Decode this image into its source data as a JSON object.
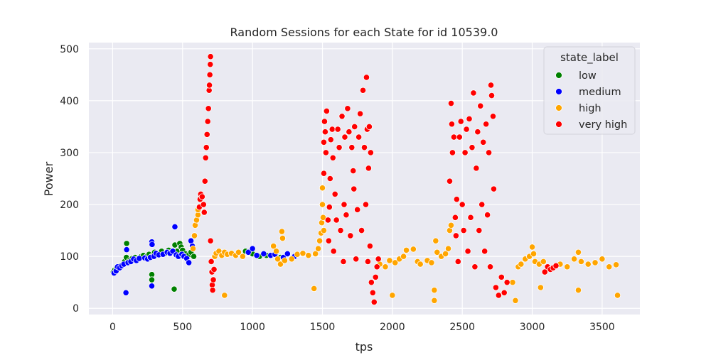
{
  "chart_data": {
    "type": "scatter",
    "title": "Random Sessions for each State for id 10539.0",
    "xlabel": "tps",
    "ylabel": "Power",
    "xlim": [
      -170,
      3770
    ],
    "ylim": [
      -12,
      512
    ],
    "xticks": [
      0,
      500,
      1000,
      1500,
      2000,
      2500,
      3000,
      3500
    ],
    "yticks": [
      0,
      100,
      200,
      300,
      400,
      500
    ],
    "grid": true,
    "legend": {
      "title": "state_label",
      "placement": "top-right"
    },
    "series": [
      {
        "name": "low",
        "color": "#008000",
        "points": [
          [
            5,
            70
          ],
          [
            15,
            74
          ],
          [
            28,
            78
          ],
          [
            40,
            76
          ],
          [
            55,
            82
          ],
          [
            70,
            84
          ],
          [
            85,
            90
          ],
          [
            98,
            98
          ],
          [
            100,
            125
          ],
          [
            120,
            92
          ],
          [
            140,
            96
          ],
          [
            160,
            98
          ],
          [
            180,
            95
          ],
          [
            205,
            100
          ],
          [
            220,
            102
          ],
          [
            240,
            99
          ],
          [
            260,
            104
          ],
          [
            280,
            100
          ],
          [
            280,
            65
          ],
          [
            280,
            55
          ],
          [
            300,
            108
          ],
          [
            320,
            105
          ],
          [
            350,
            110
          ],
          [
            380,
            106
          ],
          [
            400,
            112
          ],
          [
            420,
            108
          ],
          [
            440,
            37
          ],
          [
            445,
            122
          ],
          [
            460,
            110
          ],
          [
            480,
            125
          ],
          [
            490,
            118
          ],
          [
            500,
            112
          ],
          [
            520,
            105
          ],
          [
            540,
            102
          ],
          [
            560,
            108
          ],
          [
            580,
            100
          ],
          [
            950,
            110
          ],
          [
            1000,
            105
          ],
          [
            1050,
            100
          ],
          [
            1100,
            102
          ],
          [
            1200,
            98
          ]
        ]
      },
      {
        "name": "medium",
        "color": "#0000ff",
        "points": [
          [
            10,
            68
          ],
          [
            25,
            72
          ],
          [
            35,
            80
          ],
          [
            50,
            78
          ],
          [
            65,
            82
          ],
          [
            80,
            85
          ],
          [
            95,
            30
          ],
          [
            100,
            113
          ],
          [
            110,
            88
          ],
          [
            130,
            90
          ],
          [
            150,
            95
          ],
          [
            170,
            92
          ],
          [
            190,
            96
          ],
          [
            230,
            97
          ],
          [
            250,
            95
          ],
          [
            270,
            98
          ],
          [
            280,
            128
          ],
          [
            282,
            123
          ],
          [
            280,
            43
          ],
          [
            295,
            100
          ],
          [
            310,
            106
          ],
          [
            330,
            103
          ],
          [
            360,
            104
          ],
          [
            390,
            108
          ],
          [
            410,
            106
          ],
          [
            430,
            110
          ],
          [
            445,
            157
          ],
          [
            455,
            103
          ],
          [
            470,
            100
          ],
          [
            495,
            104
          ],
          [
            510,
            100
          ],
          [
            530,
            96
          ],
          [
            545,
            88
          ],
          [
            560,
            130
          ],
          [
            570,
            120
          ],
          [
            970,
            108
          ],
          [
            1000,
            115
          ],
          [
            1030,
            102
          ],
          [
            1080,
            105
          ],
          [
            1130,
            102
          ],
          [
            1160,
            104
          ],
          [
            1220,
            98
          ],
          [
            1250,
            105
          ],
          [
            1300,
            100
          ]
        ]
      },
      {
        "name": "high",
        "color": "#ffa500",
        "points": [
          [
            575,
            115
          ],
          [
            585,
            140
          ],
          [
            590,
            160
          ],
          [
            600,
            170
          ],
          [
            610,
            180
          ],
          [
            610,
            190
          ],
          [
            730,
            100
          ],
          [
            740,
            106
          ],
          [
            760,
            110
          ],
          [
            780,
            102
          ],
          [
            800,
            108
          ],
          [
            800,
            25
          ],
          [
            820,
            104
          ],
          [
            850,
            106
          ],
          [
            880,
            102
          ],
          [
            900,
            108
          ],
          [
            930,
            100
          ],
          [
            1150,
            120
          ],
          [
            1170,
            110
          ],
          [
            1180,
            95
          ],
          [
            1200,
            85
          ],
          [
            1210,
            148
          ],
          [
            1215,
            135
          ],
          [
            1230,
            92
          ],
          [
            1280,
            95
          ],
          [
            1320,
            104
          ],
          [
            1360,
            106
          ],
          [
            1400,
            102
          ],
          [
            1440,
            38
          ],
          [
            1450,
            105
          ],
          [
            1470,
            115
          ],
          [
            1480,
            130
          ],
          [
            1490,
            145
          ],
          [
            1495,
            165
          ],
          [
            1500,
            200
          ],
          [
            1500,
            232
          ],
          [
            1505,
            175
          ],
          [
            1510,
            150
          ],
          [
            1910,
            85
          ],
          [
            1950,
            80
          ],
          [
            1980,
            92
          ],
          [
            2000,
            25
          ],
          [
            2020,
            88
          ],
          [
            2050,
            95
          ],
          [
            2080,
            100
          ],
          [
            2100,
            112
          ],
          [
            2150,
            114
          ],
          [
            2180,
            90
          ],
          [
            2200,
            85
          ],
          [
            2250,
            92
          ],
          [
            2280,
            88
          ],
          [
            2300,
            35
          ],
          [
            2300,
            15
          ],
          [
            2310,
            130
          ],
          [
            2320,
            108
          ],
          [
            2350,
            100
          ],
          [
            2380,
            105
          ],
          [
            2400,
            115
          ],
          [
            2410,
            150
          ],
          [
            2420,
            160
          ],
          [
            2860,
            50
          ],
          [
            2880,
            15
          ],
          [
            2900,
            80
          ],
          [
            2920,
            85
          ],
          [
            2950,
            95
          ],
          [
            2980,
            100
          ],
          [
            3000,
            118
          ],
          [
            3010,
            105
          ],
          [
            3020,
            90
          ],
          [
            3050,
            85
          ],
          [
            3060,
            40
          ],
          [
            3080,
            90
          ],
          [
            3200,
            85
          ],
          [
            3250,
            80
          ],
          [
            3300,
            95
          ],
          [
            3330,
            108
          ],
          [
            3330,
            35
          ],
          [
            3350,
            90
          ],
          [
            3400,
            85
          ],
          [
            3450,
            88
          ],
          [
            3500,
            95
          ],
          [
            3550,
            80
          ],
          [
            3600,
            84
          ],
          [
            3610,
            25
          ]
        ]
      },
      {
        "name": "very high",
        "color": "#ff0000",
        "points": [
          [
            620,
            195
          ],
          [
            625,
            210
          ],
          [
            630,
            220
          ],
          [
            640,
            215
          ],
          [
            650,
            200
          ],
          [
            655,
            185
          ],
          [
            660,
            245
          ],
          [
            665,
            290
          ],
          [
            670,
            310
          ],
          [
            675,
            335
          ],
          [
            680,
            360
          ],
          [
            685,
            385
          ],
          [
            690,
            420
          ],
          [
            692,
            430
          ],
          [
            695,
            450
          ],
          [
            698,
            470
          ],
          [
            700,
            485
          ],
          [
            700,
            130
          ],
          [
            705,
            90
          ],
          [
            710,
            70
          ],
          [
            712,
            45
          ],
          [
            715,
            35
          ],
          [
            720,
            55
          ],
          [
            725,
            75
          ],
          [
            1510,
            320
          ],
          [
            1510,
            260
          ],
          [
            1515,
            360
          ],
          [
            1520,
            340
          ],
          [
            1525,
            300
          ],
          [
            1530,
            380
          ],
          [
            1540,
            170
          ],
          [
            1545,
            130
          ],
          [
            1550,
            195
          ],
          [
            1555,
            250
          ],
          [
            1560,
            325
          ],
          [
            1570,
            345
          ],
          [
            1575,
            290
          ],
          [
            1580,
            110
          ],
          [
            1590,
            220
          ],
          [
            1600,
            170
          ],
          [
            1610,
            345
          ],
          [
            1620,
            310
          ],
          [
            1630,
            150
          ],
          [
            1640,
            370
          ],
          [
            1650,
            90
          ],
          [
            1655,
            200
          ],
          [
            1660,
            330
          ],
          [
            1670,
            180
          ],
          [
            1680,
            385
          ],
          [
            1690,
            340
          ],
          [
            1700,
            140
          ],
          [
            1710,
            310
          ],
          [
            1720,
            265
          ],
          [
            1725,
            230
          ],
          [
            1730,
            350
          ],
          [
            1740,
            95
          ],
          [
            1750,
            190
          ],
          [
            1760,
            330
          ],
          [
            1770,
            375
          ],
          [
            1780,
            150
          ],
          [
            1790,
            420
          ],
          [
            1800,
            310
          ],
          [
            1810,
            200
          ],
          [
            1815,
            445
          ],
          [
            1820,
            345
          ],
          [
            1825,
            90
          ],
          [
            1830,
            270
          ],
          [
            1835,
            350
          ],
          [
            1840,
            120
          ],
          [
            1845,
            300
          ],
          [
            1850,
            50
          ],
          [
            1860,
            30
          ],
          [
            1870,
            12
          ],
          [
            1880,
            60
          ],
          [
            1890,
            80
          ],
          [
            1900,
            95
          ],
          [
            2410,
            245
          ],
          [
            2420,
            395
          ],
          [
            2425,
            355
          ],
          [
            2430,
            300
          ],
          [
            2440,
            330
          ],
          [
            2450,
            175
          ],
          [
            2455,
            140
          ],
          [
            2460,
            210
          ],
          [
            2470,
            90
          ],
          [
            2480,
            330
          ],
          [
            2490,
            360
          ],
          [
            2500,
            200
          ],
          [
            2510,
            150
          ],
          [
            2520,
            300
          ],
          [
            2530,
            345
          ],
          [
            2540,
            110
          ],
          [
            2550,
            365
          ],
          [
            2560,
            175
          ],
          [
            2570,
            310
          ],
          [
            2580,
            415
          ],
          [
            2590,
            80
          ],
          [
            2600,
            270
          ],
          [
            2610,
            340
          ],
          [
            2620,
            150
          ],
          [
            2630,
            390
          ],
          [
            2640,
            200
          ],
          [
            2650,
            320
          ],
          [
            2660,
            110
          ],
          [
            2670,
            355
          ],
          [
            2680,
            180
          ],
          [
            2690,
            300
          ],
          [
            2700,
            80
          ],
          [
            2705,
            430
          ],
          [
            2710,
            410
          ],
          [
            2720,
            370
          ],
          [
            2725,
            230
          ],
          [
            2740,
            40
          ],
          [
            2760,
            25
          ],
          [
            2780,
            60
          ],
          [
            2800,
            30
          ],
          [
            2820,
            50
          ],
          [
            3090,
            70
          ],
          [
            3110,
            80
          ],
          [
            3130,
            75
          ],
          [
            3150,
            78
          ],
          [
            3170,
            82
          ]
        ]
      }
    ]
  }
}
